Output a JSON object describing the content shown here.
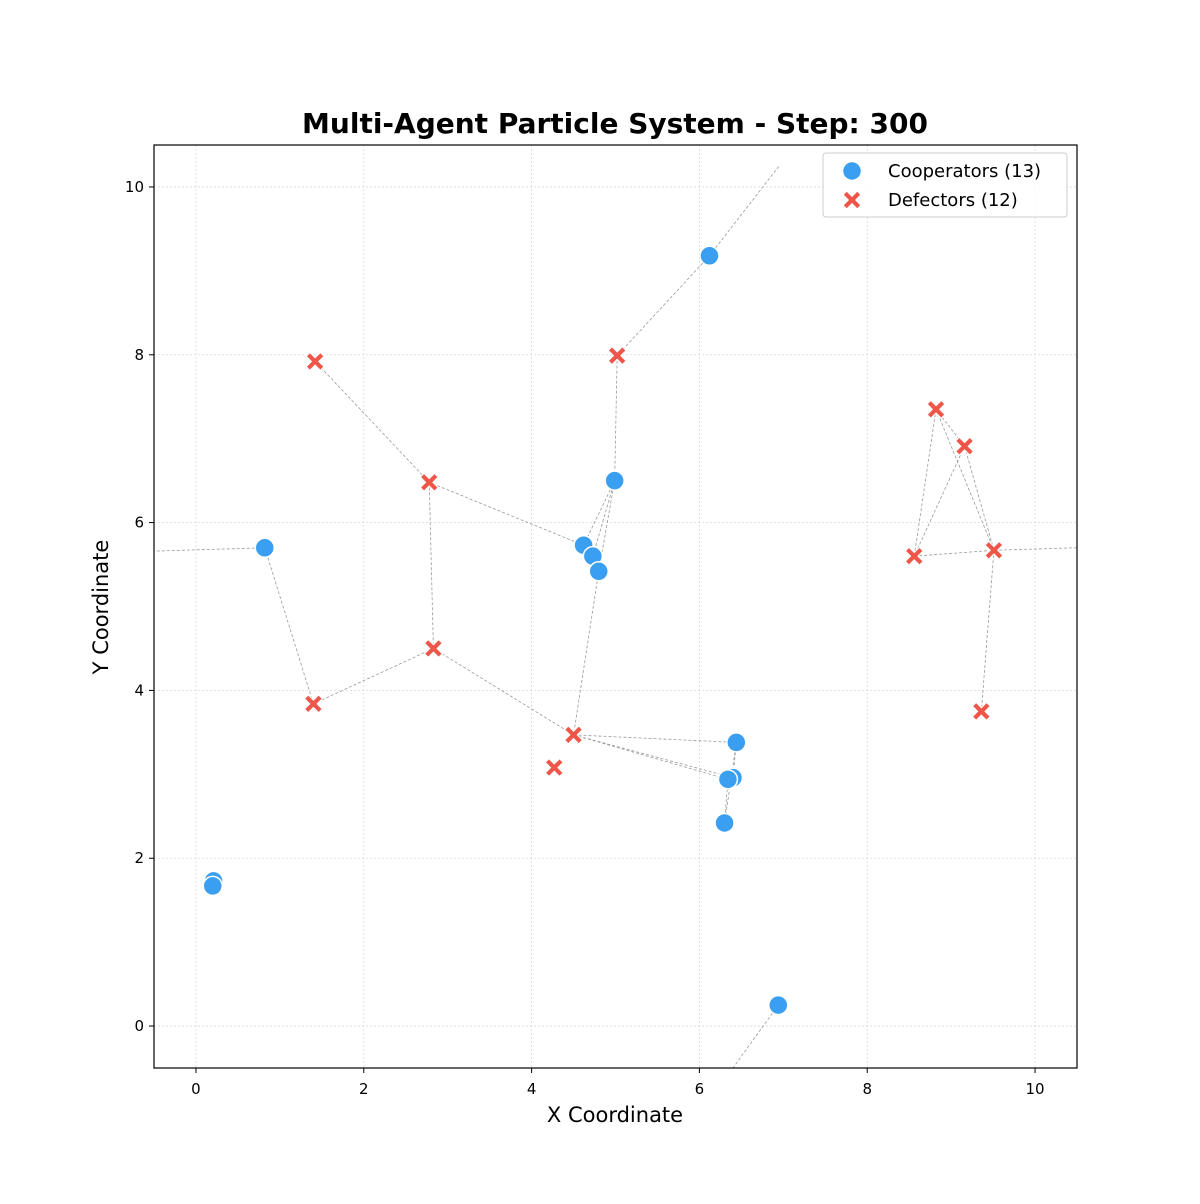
{
  "chart_data": {
    "type": "scatter",
    "title": "Multi-Agent Particle System - Step: 300",
    "xlabel": "X Coordinate",
    "ylabel": "Y Coordinate",
    "xlim": [
      -0.5,
      10.5
    ],
    "ylim": [
      -0.5,
      10.5
    ],
    "xticks": [
      0,
      2,
      4,
      6,
      8,
      10
    ],
    "yticks": [
      0,
      2,
      4,
      6,
      8,
      10
    ],
    "tick_labels": {
      "x": [
        "0",
        "2",
        "4",
        "6",
        "8",
        "10"
      ],
      "y": [
        "0",
        "2",
        "4",
        "6",
        "8",
        "10"
      ]
    },
    "grid": true,
    "legend_position": "top-right",
    "series": [
      {
        "name": "Cooperators (13)",
        "marker": "circle",
        "color": "#3a9ff0",
        "points": [
          [
            6.12,
            9.18
          ],
          [
            4.99,
            6.5
          ],
          [
            4.62,
            5.73
          ],
          [
            4.73,
            5.6
          ],
          [
            4.8,
            5.42
          ],
          [
            0.82,
            5.7
          ],
          [
            6.44,
            3.38
          ],
          [
            6.4,
            2.96
          ],
          [
            6.34,
            2.94
          ],
          [
            6.3,
            2.42
          ],
          [
            0.21,
            1.73
          ],
          [
            0.2,
            1.67
          ],
          [
            6.94,
            0.25
          ]
        ]
      },
      {
        "name": "Defectors (12)",
        "marker": "x",
        "color": "#ef5548",
        "points": [
          [
            1.42,
            7.92
          ],
          [
            5.02,
            7.99
          ],
          [
            2.78,
            6.48
          ],
          [
            2.83,
            4.5
          ],
          [
            1.4,
            3.84
          ],
          [
            4.5,
            3.47
          ],
          [
            4.27,
            3.08
          ],
          [
            8.82,
            7.35
          ],
          [
            9.16,
            6.91
          ],
          [
            8.56,
            5.6
          ],
          [
            9.51,
            5.67
          ],
          [
            9.36,
            3.75
          ]
        ]
      }
    ],
    "links": [
      [
        [
          6.12,
          9.18
        ],
        [
          6.95,
          10.25
        ]
      ],
      [
        [
          6.12,
          9.18
        ],
        [
          5.02,
          7.99
        ]
      ],
      [
        [
          5.02,
          7.99
        ],
        [
          4.99,
          6.5
        ]
      ],
      [
        [
          4.99,
          6.5
        ],
        [
          4.62,
          5.73
        ]
      ],
      [
        [
          4.99,
          6.5
        ],
        [
          4.73,
          5.6
        ]
      ],
      [
        [
          4.99,
          6.5
        ],
        [
          4.8,
          5.42
        ]
      ],
      [
        [
          4.62,
          5.73
        ],
        [
          2.78,
          6.48
        ]
      ],
      [
        [
          2.78,
          6.48
        ],
        [
          1.42,
          7.92
        ]
      ],
      [
        [
          2.78,
          6.48
        ],
        [
          2.83,
          4.5
        ]
      ],
      [
        [
          2.83,
          4.5
        ],
        [
          1.4,
          3.84
        ]
      ],
      [
        [
          1.4,
          3.84
        ],
        [
          0.82,
          5.7
        ]
      ],
      [
        [
          0.82,
          5.7
        ],
        [
          -0.5,
          5.66
        ]
      ],
      [
        [
          2.83,
          4.5
        ],
        [
          4.5,
          3.47
        ]
      ],
      [
        [
          4.8,
          5.42
        ],
        [
          4.5,
          3.47
        ]
      ],
      [
        [
          4.5,
          3.47
        ],
        [
          6.44,
          3.38
        ]
      ],
      [
        [
          4.5,
          3.47
        ],
        [
          6.4,
          2.96
        ]
      ],
      [
        [
          4.5,
          3.47
        ],
        [
          6.34,
          2.94
        ]
      ],
      [
        [
          6.44,
          3.38
        ],
        [
          6.4,
          2.96
        ]
      ],
      [
        [
          6.44,
          3.38
        ],
        [
          6.3,
          2.42
        ]
      ],
      [
        [
          6.34,
          2.94
        ],
        [
          6.3,
          2.42
        ]
      ],
      [
        [
          6.94,
          0.25
        ],
        [
          6.4,
          -0.5
        ]
      ],
      [
        [
          8.82,
          7.35
        ],
        [
          9.16,
          6.91
        ]
      ],
      [
        [
          8.82,
          7.35
        ],
        [
          8.56,
          5.6
        ]
      ],
      [
        [
          8.82,
          7.35
        ],
        [
          9.51,
          5.67
        ]
      ],
      [
        [
          9.16,
          6.91
        ],
        [
          8.56,
          5.6
        ]
      ],
      [
        [
          9.16,
          6.91
        ],
        [
          9.51,
          5.67
        ]
      ],
      [
        [
          8.56,
          5.6
        ],
        [
          9.51,
          5.67
        ]
      ],
      [
        [
          9.51,
          5.67
        ],
        [
          9.36,
          3.75
        ]
      ],
      [
        [
          9.51,
          5.67
        ],
        [
          10.5,
          5.7
        ]
      ]
    ]
  }
}
